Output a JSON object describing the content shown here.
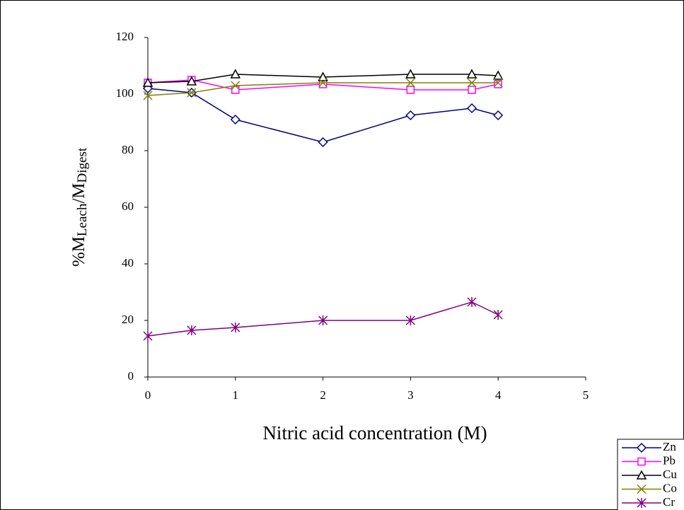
{
  "chart_data": {
    "type": "line",
    "xlabel": "Nitric acid concentration (M)",
    "ylabel": [
      "%M",
      "Leach",
      "/M",
      "Digest"
    ],
    "x": [
      0,
      0.5,
      1,
      2,
      3,
      3.7,
      4
    ],
    "xlim": [
      0,
      5
    ],
    "xticks": [
      0,
      1,
      2,
      3,
      4,
      5
    ],
    "ylim": [
      0,
      120
    ],
    "yticks": [
      0,
      20,
      40,
      60,
      80,
      100,
      120
    ],
    "grid": false,
    "legend": "bottom-right",
    "series": [
      {
        "name": "Zn",
        "color": "#000080",
        "marker": "diamond",
        "values": [
          102,
          100.5,
          91,
          83,
          92.5,
          95,
          92.5
        ]
      },
      {
        "name": "Pb",
        "color": "#ff00ff",
        "marker": "square",
        "values": [
          104,
          105,
          101.5,
          103.5,
          101.5,
          101.5,
          103.5
        ]
      },
      {
        "name": "Cu",
        "color": "#000000",
        "marker": "triangle",
        "values": [
          104,
          104.5,
          107,
          106,
          107,
          107,
          106.5
        ]
      },
      {
        "name": "Co",
        "color": "#808000",
        "marker": "cross",
        "values": [
          99.5,
          100.5,
          103,
          104,
          104,
          104,
          104
        ]
      },
      {
        "name": "Cr",
        "color": "#800080",
        "marker": "star",
        "values": [
          14.5,
          16.5,
          17.5,
          20,
          20,
          26.5,
          22
        ]
      }
    ]
  }
}
